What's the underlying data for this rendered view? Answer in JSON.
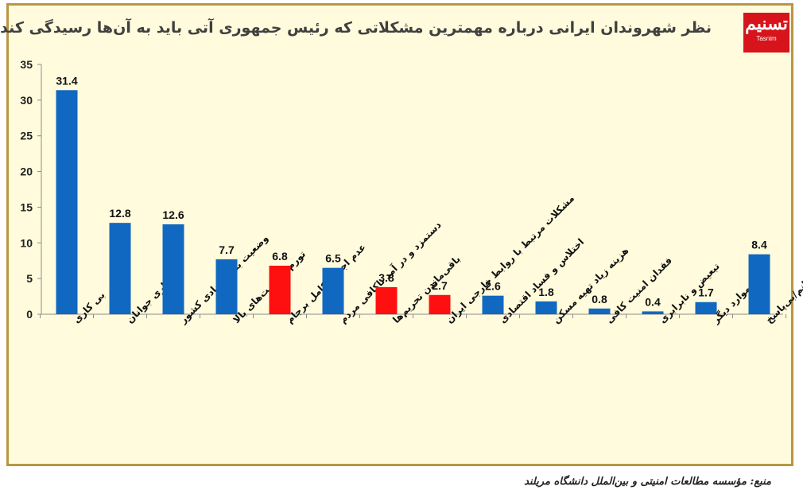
{
  "title": "نظر شهروندان ایرانی درباره مهمترین مشکلاتی که رئیس جمهوری آتی باید به آن‌ها رسیدگی کند",
  "logo": {
    "mark": "تسنیم",
    "brand": "Tasnim"
  },
  "source": "منبع: مؤسسه مطالعات امنیتی و بین‌الملل دانشگاه مریلند",
  "colors": {
    "blue": "#1168c0",
    "red": "#ff1010",
    "axis": "#8c8c8c",
    "border": "#b99644",
    "background": "#fffbdc"
  },
  "chart_data": {
    "type": "bar",
    "title": "نظر شهروندان ایرانی درباره مهمترین مشکلاتی که رئیس جمهوری آتی باید به آن‌ها رسیدگی کند",
    "xlabel": "",
    "ylabel": "",
    "ylim": [
      0,
      35
    ],
    "yticks": [
      "0",
      "5",
      "10",
      "15",
      "20",
      "25",
      "30",
      "35"
    ],
    "grid": false,
    "categories": [
      "بی کاری",
      "بی کاری جوانان",
      "وضعیت بد اقتصادی کشور",
      "تورم و قیمت‌های بالا",
      "عدم اجرای کامل برجام",
      "دستمزد و در آمد ناکافی مردم",
      "باقی‌ماندن تحریم‌ها",
      "مشکلات مرتبط با روابط خارجی ایران",
      "اختلاس و فساد اقتصادی",
      "هزینه زیاد تهیه مسکن",
      "فقدان امنیت کافی",
      "تبعیض و نابرابری",
      "موارد دیگر",
      "نمی‌دانم/بی‌پاسخ"
    ],
    "values": [
      31.4,
      12.8,
      12.6,
      7.7,
      6.8,
      6.5,
      3.8,
      2.7,
      2.6,
      1.8,
      0.8,
      0.4,
      1.7,
      8.4
    ],
    "value_labels": [
      "31.4",
      "12.8",
      "12.6",
      "7.7",
      "6.8",
      "6.5",
      "3.8",
      "2.7",
      "2.6",
      "1.8",
      "0.8",
      "0.4",
      "1.7",
      "8.4"
    ],
    "bar_colors": [
      "blue",
      "blue",
      "blue",
      "blue",
      "red",
      "blue",
      "red",
      "red",
      "blue",
      "blue",
      "blue",
      "blue",
      "blue",
      "blue"
    ]
  }
}
